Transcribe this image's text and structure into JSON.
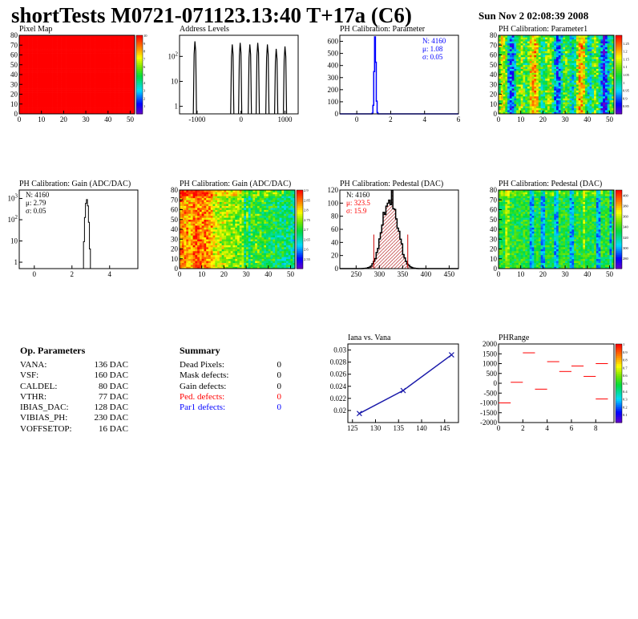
{
  "page_title": "shortTests M0721-071123.13:40 T+17a (C6)",
  "date": "Sun Nov  2 02:08:39 2008",
  "colors": {
    "red": "#ff0000",
    "blue": "#0000ff",
    "black": "#000000",
    "dark_red": "#aa0000"
  },
  "op_params": {
    "title": "Op. Parameters",
    "items": [
      {
        "label": "VANA:",
        "value": "136 DAC"
      },
      {
        "label": "VSF:",
        "value": "160 DAC"
      },
      {
        "label": "CALDEL:",
        "value": "80 DAC"
      },
      {
        "label": "VTHR:",
        "value": "77 DAC"
      },
      {
        "label": "IBIAS_DAC:",
        "value": "128 DAC"
      },
      {
        "label": "VIBIAS_PH:",
        "value": "230 DAC"
      },
      {
        "label": "VOFFSETOP:",
        "value": "16 DAC"
      }
    ]
  },
  "summary": {
    "title": "Summary",
    "items": [
      {
        "label": "Dead Pixels:",
        "value": "0",
        "color": "#000000"
      },
      {
        "label": "Mask defects:",
        "value": "0",
        "color": "#000000"
      },
      {
        "label": "Gain defects:",
        "value": "0",
        "color": "#000000"
      },
      {
        "label": "Ped. defects:",
        "value": "0",
        "color": "#ff0000"
      },
      {
        "label": "Par1 defects:",
        "value": "0",
        "color": "#0000ff"
      }
    ]
  },
  "chart_data": [
    {
      "id": "pixel-map",
      "type": "heatmap",
      "title": "Pixel Map",
      "xlim": [
        0,
        52
      ],
      "ylim": [
        0,
        80
      ],
      "x_ticks": [
        "0",
        "10",
        "20",
        "30",
        "40",
        "50"
      ],
      "y_ticks": [
        "0",
        "10",
        "20",
        "30",
        "40",
        "50",
        "60",
        "70",
        "80"
      ],
      "palette": "uniform",
      "uniform_value": 10,
      "colorbar": {
        "min": 0,
        "max": 10,
        "labels": [
          "1",
          "2",
          "3",
          "4",
          "5",
          "6",
          "7",
          "8",
          "9",
          "10"
        ]
      }
    },
    {
      "id": "address-levels",
      "type": "bar",
      "title": "Address Levels",
      "log_y": true,
      "xlim": [
        -1400,
        1300
      ],
      "ylim": [
        0.5,
        700
      ],
      "x_ticks": [
        "-1000",
        "0",
        "1000"
      ],
      "y_ticks": [
        "1",
        "10",
        "10^2"
      ],
      "peaks": [
        {
          "x": -1050,
          "y": 400
        },
        {
          "x": -200,
          "y": 300
        },
        {
          "x": -20,
          "y": 350
        },
        {
          "x": 200,
          "y": 300
        },
        {
          "x": 380,
          "y": 350
        },
        {
          "x": 600,
          "y": 300
        },
        {
          "x": 800,
          "y": 200
        },
        {
          "x": 1000,
          "y": 250
        }
      ]
    },
    {
      "id": "ph-cal-parameter",
      "type": "line",
      "title": "PH Calibration: Parameter",
      "xlim": [
        -1,
        6
      ],
      "ylim": [
        0,
        650
      ],
      "x_ticks": [
        "0",
        "2",
        "4",
        "6"
      ],
      "y_ticks": [
        "0",
        "100",
        "200",
        "300",
        "400",
        "500",
        "600"
      ],
      "peak": {
        "mean": 1.08,
        "sigma": 0.05,
        "height": 640
      },
      "stats": [
        {
          "text": "N: 4160",
          "color": "#0000ff"
        },
        {
          "text": "μ: 1.08",
          "color": "#0000ff"
        },
        {
          "text": "σ: 0.05",
          "color": "#0000ff"
        }
      ]
    },
    {
      "id": "ph-cal-parameter1",
      "type": "heatmap",
      "title": "PH Calibration: Parameter1",
      "xlim": [
        0,
        52
      ],
      "ylim": [
        0,
        80
      ],
      "x_ticks": [
        "0",
        "10",
        "20",
        "30",
        "40",
        "50"
      ],
      "y_ticks": [
        "0",
        "10",
        "20",
        "30",
        "40",
        "50",
        "60",
        "70",
        "80"
      ],
      "palette": "param1",
      "colorbar": {
        "min": 0.8,
        "max": 1.3,
        "labels": [
          "0.85",
          "0.9",
          "0.95",
          "1",
          "1.05",
          "1.1",
          "1.15",
          "1.2",
          "1.25"
        ]
      }
    },
    {
      "id": "ph-cal-gain-hist",
      "type": "line",
      "title": "PH Calibration: Gain (ADC/DAC)",
      "log_y": true,
      "xlim": [
        -0.8,
        5.5
      ],
      "ylim": [
        0.5,
        2500
      ],
      "x_ticks": [
        "0",
        "2",
        "4"
      ],
      "y_ticks": [
        "1",
        "10",
        "10^2",
        "10^3"
      ],
      "peak": {
        "mean": 2.79,
        "sigma": 0.05,
        "height": 900
      },
      "stats": [
        {
          "text": "N: 4160",
          "color": "#000000"
        },
        {
          "text": "μ: 2.79",
          "color": "#000000"
        },
        {
          "text": "σ: 0.05",
          "color": "#000000"
        }
      ]
    },
    {
      "id": "ph-cal-gain-map",
      "type": "heatmap",
      "title": "PH Calibration: Gain (ADC/DAC)",
      "xlim": [
        0,
        52
      ],
      "ylim": [
        0,
        80
      ],
      "x_ticks": [
        "0",
        "10",
        "20",
        "30",
        "40",
        "50"
      ],
      "y_ticks": [
        "0",
        "10",
        "20",
        "30",
        "40",
        "50",
        "60",
        "70",
        "80"
      ],
      "palette": "gain",
      "colorbar": {
        "min": 2.5,
        "max": 2.9,
        "labels": [
          "2.55",
          "2.6",
          "2.65",
          "2.7",
          "2.75",
          "2.8",
          "2.85",
          "2.9"
        ]
      }
    },
    {
      "id": "ph-cal-pedestal-hist",
      "type": "line",
      "title": "PH Calibration: Pedestal (DAC)",
      "xlim": [
        215,
        470
      ],
      "ylim": [
        0,
        120
      ],
      "x_ticks": [
        "250",
        "300",
        "350",
        "400",
        "450"
      ],
      "y_ticks": [
        "0",
        "20",
        "40",
        "60",
        "80",
        "100",
        "120"
      ],
      "peak": {
        "mean": 323.5,
        "sigma": 15.9,
        "height": 114
      },
      "cut_lines": [
        288,
        361
      ],
      "stats": [
        {
          "text": "N: 4160",
          "color": "#000000"
        },
        {
          "text": "μ: 323.5",
          "color": "#ff0000"
        },
        {
          "text": "σ: 15.9",
          "color": "#ff0000"
        }
      ]
    },
    {
      "id": "ph-cal-pedestal-map",
      "type": "heatmap",
      "title": "PH Calibration: Pedestal (DAC)",
      "xlim": [
        0,
        52
      ],
      "ylim": [
        0,
        80
      ],
      "x_ticks": [
        "0",
        "10",
        "20",
        "30",
        "40",
        "50"
      ],
      "y_ticks": [
        "0",
        "10",
        "20",
        "30",
        "40",
        "50",
        "60",
        "70",
        "80"
      ],
      "palette": "pedestal",
      "colorbar": {
        "min": 260,
        "max": 410,
        "labels": [
          "280",
          "300",
          "320",
          "340",
          "360",
          "380",
          "400"
        ]
      }
    },
    {
      "id": "iana-vs-vana",
      "type": "line",
      "title": "Iana vs. Vana",
      "xlim": [
        124,
        148
      ],
      "ylim": [
        0.018,
        0.031
      ],
      "x_ticks": [
        "125",
        "130",
        "135",
        "140",
        "145"
      ],
      "y_ticks": [
        "0.02",
        "0.022",
        "0.024",
        "0.026",
        "0.028",
        "0.03"
      ],
      "x": [
        126.5,
        136,
        146.5
      ],
      "y": [
        0.0195,
        0.0233,
        0.0292
      ]
    },
    {
      "id": "ph-range",
      "type": "scatter",
      "title": "PHRange",
      "xlim": [
        0,
        9.5
      ],
      "ylim": [
        -2000,
        2000
      ],
      "x_ticks": [
        "0",
        "2",
        "4",
        "6",
        "8"
      ],
      "y_ticks": [
        "-2000",
        "-1500",
        "-1000",
        "-500",
        "0",
        "500",
        "1000",
        "1500",
        "2000"
      ],
      "segments": [
        {
          "x": 0.5,
          "y": -1000
        },
        {
          "x": 1.5,
          "y": 50
        },
        {
          "x": 2.5,
          "y": 1550
        },
        {
          "x": 3.5,
          "y": -300
        },
        {
          "x": 4.5,
          "y": 1100
        },
        {
          "x": 5.5,
          "y": 600
        },
        {
          "x": 6.5,
          "y": 880
        },
        {
          "x": 7.5,
          "y": 350
        },
        {
          "x": 8.5,
          "y": 1000
        },
        {
          "x": 8.5,
          "y": -800
        }
      ],
      "colorbar": {
        "min": 0,
        "max": 1,
        "labels": [
          "0.1",
          "0.2",
          "0.3",
          "0.4",
          "0.5",
          "0.6",
          "0.7",
          "0.8",
          "0.9",
          "1"
        ]
      }
    }
  ]
}
